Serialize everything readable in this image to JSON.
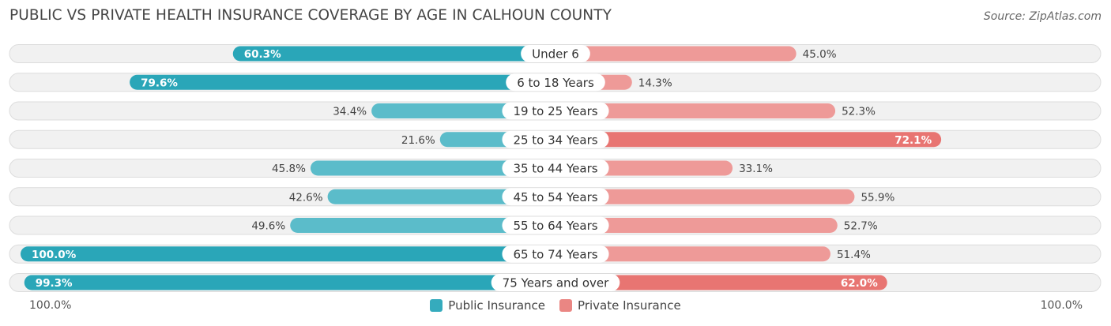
{
  "header": {
    "title": "PUBLIC VS PRIVATE HEALTH INSURANCE COVERAGE BY AGE IN CALHOUN COUNTY",
    "source": "Source: ZipAtlas.com"
  },
  "colors": {
    "public": "#5bbcca",
    "public_strong": "#2aa6b8",
    "private": "#ee9a98",
    "private_strong": "#e87572",
    "track": "#f1f1f1",
    "track_border": "#dcdcdc"
  },
  "axis": {
    "left_label": "100.0%",
    "right_label": "100.0%"
  },
  "legend": [
    {
      "name": "Public Insurance",
      "color": "#35abbd"
    },
    {
      "name": "Private Insurance",
      "color": "#ea8683"
    }
  ],
  "chart_data": {
    "type": "bar",
    "orientation": "diverging-horizontal",
    "categories": [
      "Under 6",
      "6 to 18 Years",
      "19 to 25 Years",
      "25 to 34 Years",
      "35 to 44 Years",
      "45 to 54 Years",
      "55 to 64 Years",
      "65 to 74 Years",
      "75 Years and over"
    ],
    "series": [
      {
        "name": "Public Insurance",
        "values": [
          60.3,
          79.6,
          34.4,
          21.6,
          45.8,
          42.6,
          49.6,
          100.0,
          99.3
        ],
        "labels": [
          "60.3%",
          "79.6%",
          "34.4%",
          "21.6%",
          "45.8%",
          "42.6%",
          "49.6%",
          "100.0%",
          "99.3%"
        ]
      },
      {
        "name": "Private Insurance",
        "values": [
          45.0,
          14.3,
          52.3,
          72.1,
          33.1,
          55.9,
          52.7,
          51.4,
          62.0
        ],
        "labels": [
          "45.0%",
          "14.3%",
          "52.3%",
          "72.1%",
          "33.1%",
          "55.9%",
          "52.7%",
          "51.4%",
          "62.0%"
        ]
      }
    ],
    "xlim": [
      -100,
      100
    ],
    "grid": false,
    "legend_position": "bottom"
  }
}
